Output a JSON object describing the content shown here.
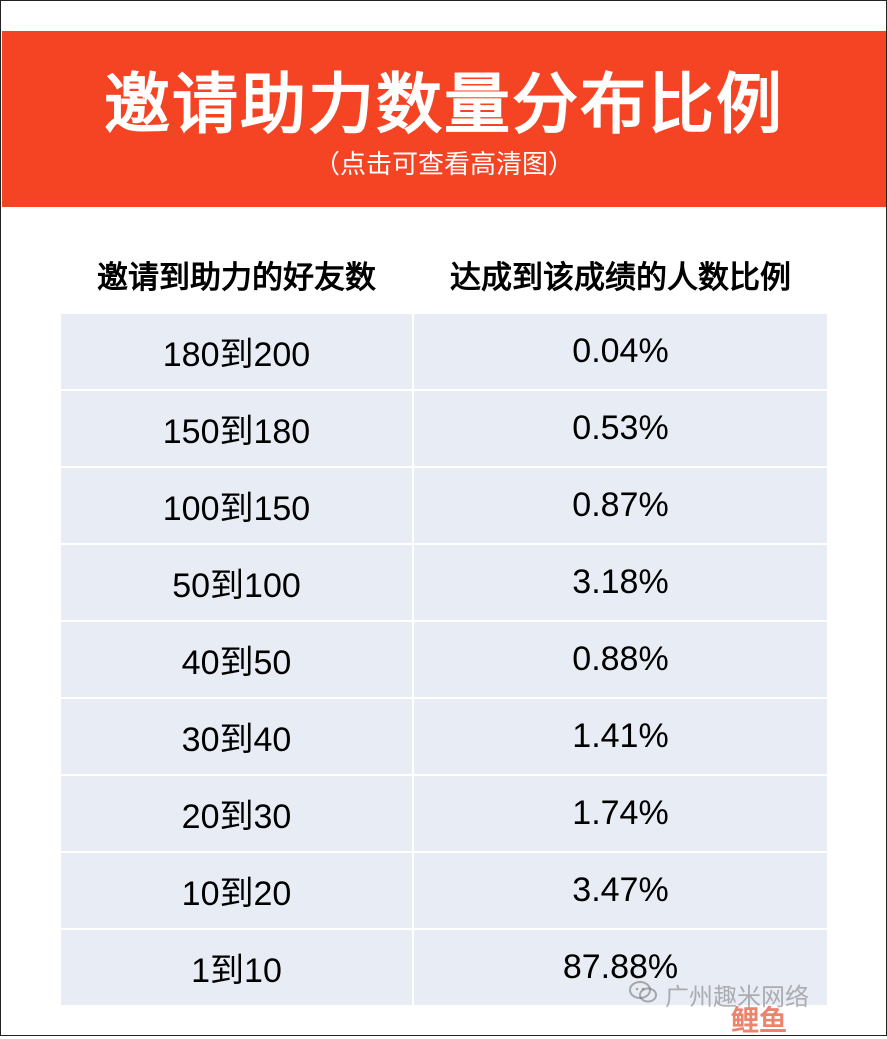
{
  "banner": {
    "title": "邀请助力数量分布比例",
    "subtitle": "（点击可查看高清图）"
  },
  "table": {
    "headers": [
      "邀请到助力的好友数",
      "达成到该成绩的人数比例"
    ],
    "rows": [
      [
        "180到200",
        "0.04%"
      ],
      [
        "150到180",
        "0.53%"
      ],
      [
        "100到150",
        "0.87%"
      ],
      [
        "50到100",
        "3.18%"
      ],
      [
        "40到50",
        "0.88%"
      ],
      [
        "30到40",
        "1.41%"
      ],
      [
        "20到30",
        "1.74%"
      ],
      [
        "10到20",
        "3.47%"
      ],
      [
        "1到10",
        "87.88%"
      ]
    ]
  },
  "watermark": {
    "text": "广州趣米网络",
    "logo_text": "鲤鱼",
    "icon": "wechat-icon"
  },
  "colors": {
    "banner_bg": "#f44424",
    "cell_bg": "#e8ecf5"
  }
}
